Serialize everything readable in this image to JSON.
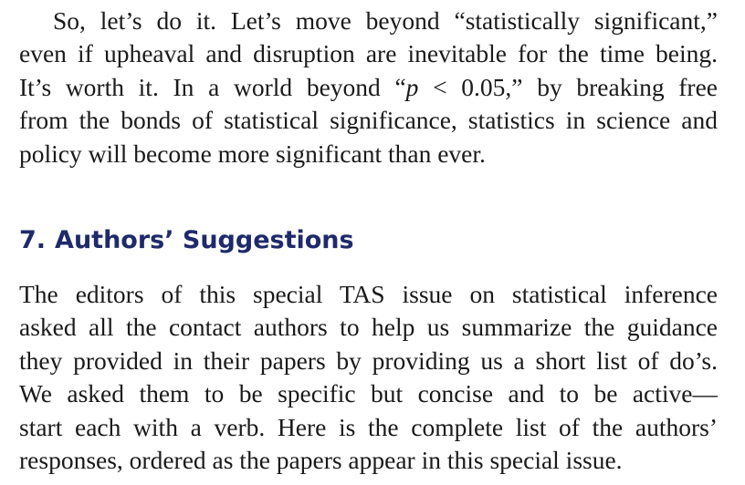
{
  "section1": {
    "lines": [
      "So, let’s do it. Let’s move beyond “statistically significant,”",
      "even if upheaval and disruption are inevitable for the time being.",
      "It’s worth it. In a world beyond “p  <  0.05,” by breaking free",
      "from the bonds of statistical significance, statistics in science and",
      "policy will become more significant than ever."
    ]
  },
  "heading": {
    "number": "7.",
    "title": "Authors’ Suggestions"
  },
  "section2": {
    "lines": [
      "The editors of this special TAS issue on statistical inference",
      "asked all the contact authors to help us summarize the guidance",
      "they provided in their papers by providing us a short list of do’s.",
      "We asked them to be specific but concise and to be active—",
      "start each with a verb. Here is the complete list of the authors’",
      "responses, ordered as the papers appear in this special issue."
    ]
  }
}
